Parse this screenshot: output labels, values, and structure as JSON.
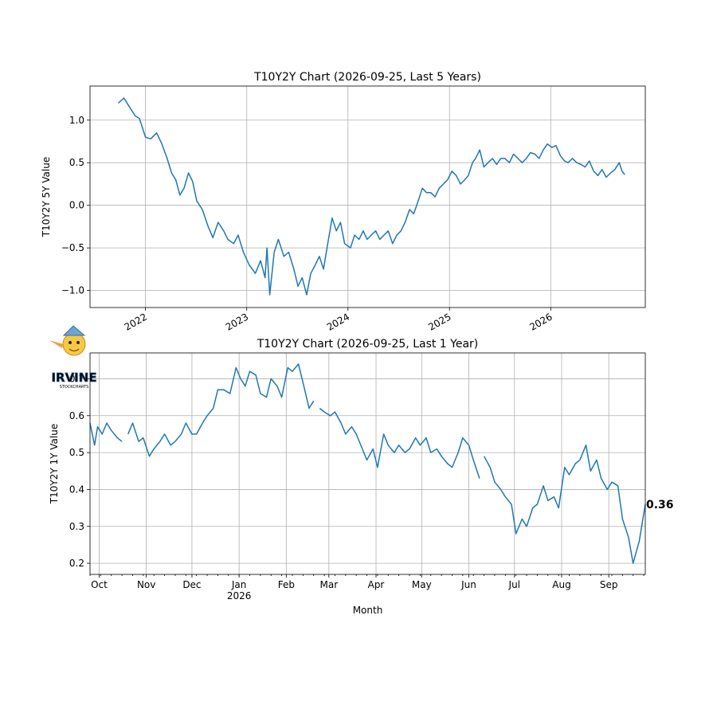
{
  "logo": {
    "text": "IRVINE",
    "subtext": "STOCKCHARTS"
  },
  "chart_data": [
    {
      "type": "line",
      "title": "T10Y2Y Chart (2026-09-25, Last 5 Years)",
      "xlabel": "",
      "ylabel": "T10Y2Y 5Y Value",
      "xlim": [
        "2021-06-15",
        "2026-12-08"
      ],
      "ylim": [
        -1.2,
        1.4
      ],
      "xticks": [
        {
          "date": "2022-01-01",
          "label": "2022"
        },
        {
          "date": "2023-01-01",
          "label": "2023"
        },
        {
          "date": "2024-01-01",
          "label": "2024"
        },
        {
          "date": "2025-01-01",
          "label": "2025"
        },
        {
          "date": "2026-01-01",
          "label": "2026"
        }
      ],
      "yticks": [
        -1.0,
        -0.5,
        0.0,
        0.5,
        1.0
      ],
      "grid": true,
      "series": [
        {
          "x": [
            "2021-09-25",
            "2021-10-15",
            "2021-11-05",
            "2021-11-25",
            "2021-12-10",
            "2022-01-01",
            "2022-01-20",
            "2022-02-10",
            "2022-03-01",
            "2022-03-20",
            "2022-04-05",
            "2022-04-20",
            "2022-05-05",
            "2022-05-20",
            "2022-06-05",
            "2022-06-20",
            "2022-07-05",
            "2022-07-25",
            "2022-08-15",
            "2022-09-01",
            "2022-09-20",
            "2022-10-10",
            "2022-10-25",
            "2022-11-15",
            "2022-12-01",
            "2022-12-20",
            "2023-01-10",
            "2023-02-01",
            "2023-02-20",
            "2023-03-08",
            "2023-03-15",
            "2023-03-25",
            "2023-04-10",
            "2023-04-25",
            "2023-05-15",
            "2023-06-01",
            "2023-06-20",
            "2023-07-05",
            "2023-07-20",
            "2023-08-05",
            "2023-08-20",
            "2023-09-05",
            "2023-09-20",
            "2023-10-05",
            "2023-10-20",
            "2023-11-05",
            "2023-11-20",
            "2023-12-05",
            "2023-12-20",
            "2024-01-10",
            "2024-01-25",
            "2024-02-10",
            "2024-02-25",
            "2024-03-10",
            "2024-03-25",
            "2024-04-10",
            "2024-04-25",
            "2024-05-10",
            "2024-05-25",
            "2024-06-10",
            "2024-06-25",
            "2024-07-10",
            "2024-07-25",
            "2024-08-10",
            "2024-08-25",
            "2024-09-10",
            "2024-09-25",
            "2024-10-10",
            "2024-10-25",
            "2024-11-10",
            "2024-11-25",
            "2024-12-10",
            "2024-12-25",
            "2025-01-10",
            "2025-01-25",
            "2025-02-10",
            "2025-02-25",
            "2025-03-10",
            "2025-03-25",
            "2025-04-05",
            "2025-04-20",
            "2025-05-05",
            "2025-05-20",
            "2025-06-05",
            "2025-06-20",
            "2025-07-05",
            "2025-07-20",
            "2025-08-05",
            "2025-08-20",
            "2025-09-05",
            "2025-09-20",
            "2025-10-05",
            "2025-10-20",
            "2025-11-05",
            "2025-11-20",
            "2025-12-05",
            "2025-12-20",
            "2026-01-05",
            "2026-01-20",
            "2026-02-05",
            "2026-02-20",
            "2026-03-05",
            "2026-03-20",
            "2026-04-05",
            "2026-04-20",
            "2026-05-05",
            "2026-05-20",
            "2026-06-05",
            "2026-06-20",
            "2026-07-05",
            "2026-07-20",
            "2026-08-05",
            "2026-08-20",
            "2026-09-05",
            "2026-09-15",
            "2026-09-25"
          ],
          "y": [
            1.2,
            1.26,
            1.15,
            1.05,
            1.02,
            0.8,
            0.78,
            0.85,
            0.72,
            0.55,
            0.38,
            0.3,
            0.12,
            0.2,
            0.38,
            0.28,
            0.05,
            -0.05,
            -0.25,
            -0.38,
            -0.2,
            -0.3,
            -0.4,
            -0.45,
            -0.35,
            -0.55,
            -0.7,
            -0.8,
            -0.65,
            -0.85,
            -0.5,
            -1.05,
            -0.55,
            -0.4,
            -0.6,
            -0.55,
            -0.75,
            -0.95,
            -0.85,
            -1.05,
            -0.8,
            -0.7,
            -0.6,
            -0.75,
            -0.45,
            -0.15,
            -0.3,
            -0.2,
            -0.45,
            -0.5,
            -0.35,
            -0.4,
            -0.3,
            -0.4,
            -0.35,
            -0.3,
            -0.4,
            -0.35,
            -0.3,
            -0.45,
            -0.35,
            -0.3,
            -0.2,
            -0.05,
            -0.1,
            0.05,
            0.2,
            0.15,
            0.15,
            0.1,
            0.2,
            0.25,
            0.3,
            0.4,
            0.35,
            0.25,
            0.3,
            0.35,
            0.5,
            0.55,
            0.65,
            0.45,
            0.5,
            0.55,
            0.48,
            0.55,
            0.55,
            0.5,
            0.6,
            0.55,
            0.5,
            0.55,
            0.62,
            0.6,
            0.55,
            0.65,
            0.72,
            0.68,
            0.7,
            0.58,
            0.52,
            0.5,
            0.55,
            0.5,
            0.48,
            0.45,
            0.52,
            0.4,
            0.35,
            0.42,
            0.33,
            0.38,
            0.42,
            0.5,
            0.4,
            0.36
          ]
        }
      ]
    },
    {
      "type": "line",
      "title": "T10Y2Y Chart (2026-09-25, Last 1 Year)",
      "xlabel": "Month",
      "ylabel": "T10Y2Y 1Y Value",
      "xlim": [
        "2025-09-25",
        "2026-09-25"
      ],
      "ylim": [
        0.17,
        0.77
      ],
      "xticks": [
        {
          "date": "2025-10-01",
          "label": "Oct"
        },
        {
          "date": "2025-11-01",
          "label": "Nov"
        },
        {
          "date": "2025-12-01",
          "label": "Dec"
        },
        {
          "date": "2026-01-01",
          "label": "Jan",
          "sublabel": "2026"
        },
        {
          "date": "2026-02-01",
          "label": "Feb"
        },
        {
          "date": "2026-03-01",
          "label": "Mar"
        },
        {
          "date": "2026-04-01",
          "label": "Apr"
        },
        {
          "date": "2026-05-01",
          "label": "May"
        },
        {
          "date": "2026-06-01",
          "label": "Jun"
        },
        {
          "date": "2026-07-01",
          "label": "Jul"
        },
        {
          "date": "2026-08-01",
          "label": "Aug"
        },
        {
          "date": "2026-09-01",
          "label": "Sep"
        }
      ],
      "yticks": [
        0.2,
        0.3,
        0.4,
        0.5,
        0.6,
        0.7
      ],
      "grid": true,
      "annotation": {
        "text": "0.36",
        "x": "2026-09-25",
        "y": 0.36
      },
      "series": [
        {
          "segments": [
            {
              "x": [
                "2025-09-25",
                "2025-09-28",
                "2025-09-30",
                "2025-10-03",
                "2025-10-06",
                "2025-10-09",
                "2025-10-13",
                "2025-10-16"
              ],
              "y": [
                0.58,
                0.52,
                0.57,
                0.55,
                0.58,
                0.56,
                0.54,
                0.53
              ]
            },
            {
              "x": [
                "2025-10-20",
                "2025-10-23",
                "2025-10-27",
                "2025-10-30",
                "2025-11-03",
                "2025-11-06",
                "2025-11-10",
                "2025-11-13",
                "2025-11-17",
                "2025-11-20",
                "2025-11-24",
                "2025-11-27",
                "2025-12-01",
                "2025-12-04",
                "2025-12-08",
                "2025-12-11",
                "2025-12-15",
                "2025-12-18",
                "2025-12-22",
                "2025-12-26",
                "2025-12-30",
                "2026-01-02",
                "2026-01-05",
                "2026-01-08",
                "2026-01-12",
                "2026-01-15",
                "2026-01-19",
                "2026-01-22",
                "2026-01-26",
                "2026-01-29",
                "2026-02-02",
                "2026-02-05",
                "2026-02-09",
                "2026-02-12",
                "2026-02-16",
                "2026-02-19"
              ],
              "y": [
                0.55,
                0.58,
                0.53,
                0.54,
                0.49,
                0.51,
                0.53,
                0.55,
                0.52,
                0.53,
                0.55,
                0.58,
                0.55,
                0.55,
                0.58,
                0.6,
                0.62,
                0.67,
                0.67,
                0.66,
                0.73,
                0.7,
                0.68,
                0.72,
                0.71,
                0.66,
                0.65,
                0.7,
                0.68,
                0.65,
                0.73,
                0.72,
                0.74,
                0.69,
                0.62,
                0.64
              ]
            },
            {
              "x": [
                "2026-02-23",
                "2026-02-26",
                "2026-03-02",
                "2026-03-05",
                "2026-03-09",
                "2026-03-12",
                "2026-03-16",
                "2026-03-19",
                "2026-03-23",
                "2026-03-26",
                "2026-03-30",
                "2026-04-02",
                "2026-04-06",
                "2026-04-09",
                "2026-04-13",
                "2026-04-16",
                "2026-04-20",
                "2026-04-23",
                "2026-04-27",
                "2026-04-30",
                "2026-05-04",
                "2026-05-07",
                "2026-05-11",
                "2026-05-14",
                "2026-05-18",
                "2026-05-21",
                "2026-05-25",
                "2026-05-28",
                "2026-06-01",
                "2026-06-04",
                "2026-06-08"
              ],
              "y": [
                0.62,
                0.61,
                0.6,
                0.61,
                0.58,
                0.55,
                0.57,
                0.55,
                0.51,
                0.48,
                0.51,
                0.46,
                0.55,
                0.52,
                0.5,
                0.52,
                0.5,
                0.51,
                0.54,
                0.52,
                0.54,
                0.5,
                0.51,
                0.49,
                0.47,
                0.46,
                0.5,
                0.54,
                0.52,
                0.48,
                0.43
              ]
            },
            {
              "x": [
                "2026-06-11",
                "2026-06-15",
                "2026-06-18",
                "2026-06-22",
                "2026-06-25",
                "2026-06-29",
                "2026-07-02",
                "2026-07-06",
                "2026-07-09",
                "2026-07-13",
                "2026-07-16",
                "2026-07-20",
                "2026-07-23",
                "2026-07-27",
                "2026-07-30",
                "2026-08-03",
                "2026-08-06",
                "2026-08-10",
                "2026-08-13",
                "2026-08-17",
                "2026-08-20",
                "2026-08-24",
                "2026-08-27",
                "2026-08-31",
                "2026-09-03",
                "2026-09-07",
                "2026-09-10",
                "2026-09-14",
                "2026-09-17",
                "2026-09-21",
                "2026-09-25"
              ],
              "y": [
                0.49,
                0.46,
                0.42,
                0.4,
                0.38,
                0.36,
                0.28,
                0.32,
                0.3,
                0.35,
                0.36,
                0.41,
                0.37,
                0.38,
                0.35,
                0.46,
                0.44,
                0.47,
                0.48,
                0.52,
                0.45,
                0.48,
                0.43,
                0.4,
                0.42,
                0.41,
                0.32,
                0.27,
                0.2,
                0.26,
                0.36
              ]
            }
          ]
        }
      ]
    }
  ]
}
